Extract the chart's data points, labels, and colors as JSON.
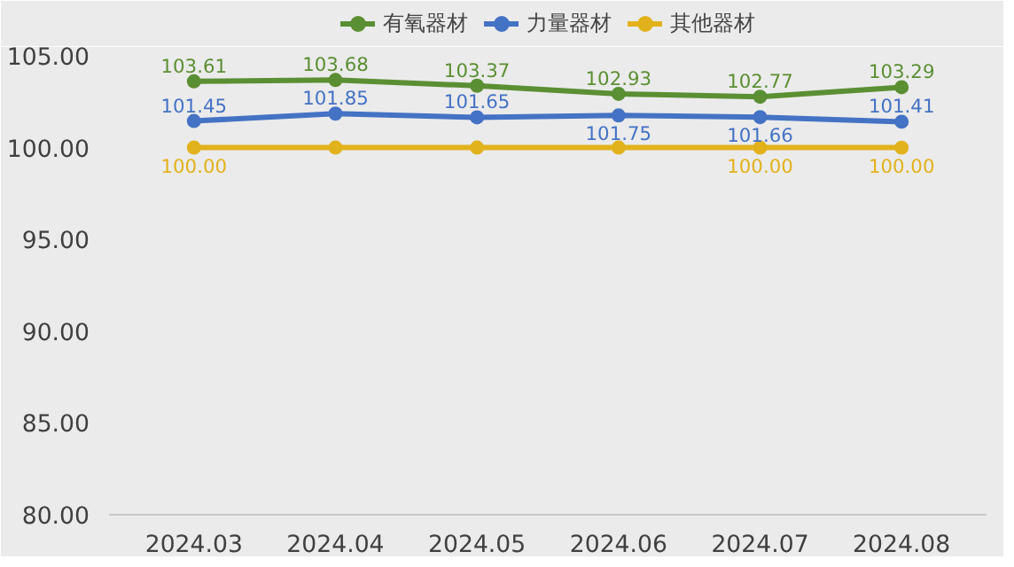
{
  "chart_data": {
    "type": "line",
    "categories": [
      "2024.03",
      "2024.04",
      "2024.05",
      "2024.06",
      "2024.07",
      "2024.08"
    ],
    "series": [
      {
        "name": "有氧器材",
        "color": "#5b8f33",
        "values": [
          103.61,
          103.68,
          103.37,
          102.93,
          102.77,
          103.29
        ]
      },
      {
        "name": "力量器材",
        "color": "#4472c4",
        "values": [
          101.45,
          101.85,
          101.65,
          101.75,
          101.66,
          101.41
        ]
      },
      {
        "name": "其他器材",
        "color": "#e2b21c",
        "values": [
          100.0,
          100.0,
          100.0,
          100.0,
          100.0,
          100.0
        ],
        "value_labels": [
          "100.00",
          null,
          null,
          null,
          "100.00",
          "100.00"
        ]
      }
    ],
    "ylim": [
      80,
      105
    ],
    "yticks": [
      {
        "value": 80,
        "label": "80.00"
      },
      {
        "value": 85,
        "label": "85.00"
      },
      {
        "value": 90,
        "label": "90.00"
      },
      {
        "value": 95,
        "label": "95.00"
      },
      {
        "value": 100,
        "label": "100.00"
      },
      {
        "value": 105,
        "label": "105.00"
      }
    ],
    "data_labels": true,
    "legend": "top",
    "marker": "circle",
    "line_style": "solid",
    "grid": false
  }
}
